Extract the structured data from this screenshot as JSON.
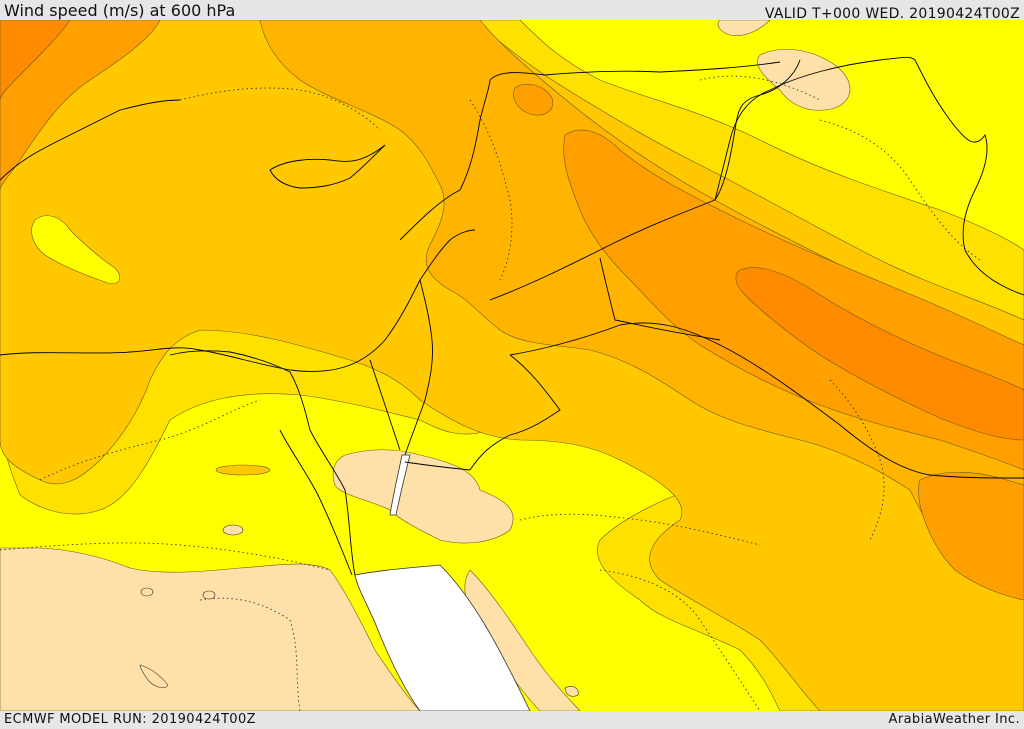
{
  "header": {
    "title": "Wind speed (m/s) at 600 hPa",
    "valid": "VALID T+000 WED. 20190424T00Z"
  },
  "footer": {
    "model_run": "ECMWF MODEL RUN: 20190424T00Z",
    "credit": "ArabiaWeather Inc."
  },
  "map": {
    "field": "wind speed",
    "level": "600 hPa",
    "colors": {
      "below_range": "#ffe0a8",
      "band_1": "#ffff00",
      "band_2": "#ffe100",
      "band_3": "#ffc800",
      "band_4": "#ffb400",
      "band_5": "#ffa000",
      "band_6": "#ff8c00",
      "band_7": "#ff7800",
      "sea_no_data": "#ffffff",
      "contour": "#6b5a1e",
      "border": "#000000"
    }
  }
}
